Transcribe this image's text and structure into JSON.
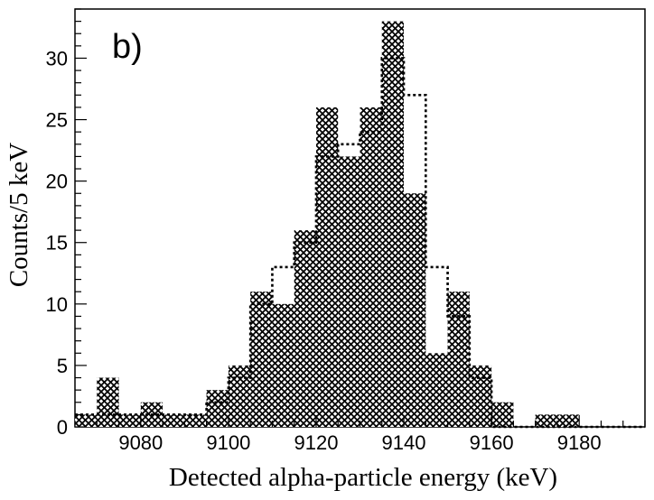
{
  "chart_data": {
    "type": "histogram",
    "panel_label": "b)",
    "xlabel": "Detected alpha-particle energy (keV)",
    "ylabel": "Counts/5 keV",
    "xlim": [
      9065,
      9195
    ],
    "ylim": [
      0,
      34
    ],
    "bin_width": 5,
    "x_ticks": [
      9080,
      9100,
      9120,
      9140,
      9160,
      9180
    ],
    "y_ticks": [
      0,
      5,
      10,
      15,
      20,
      25,
      30
    ],
    "bin_starts": [
      9065,
      9070,
      9075,
      9080,
      9085,
      9090,
      9095,
      9100,
      9105,
      9110,
      9115,
      9120,
      9125,
      9130,
      9135,
      9140,
      9145,
      9150,
      9155,
      9160,
      9165,
      9170,
      9175,
      9180,
      9185,
      9190
    ],
    "series": [
      {
        "style": "crosshatch-filled",
        "values": [
          1,
          4,
          1,
          2,
          1,
          1,
          3,
          5,
          11,
          10,
          16,
          26,
          22,
          26,
          33,
          19,
          6,
          11,
          5,
          2,
          0,
          1,
          1,
          0,
          0,
          0
        ]
      },
      {
        "style": "dotted-outline",
        "values": [
          1,
          1,
          1,
          1,
          1,
          1,
          2,
          4,
          10,
          13,
          15,
          22,
          23,
          24,
          30,
          27,
          13,
          9,
          4,
          0,
          0,
          0,
          0,
          0,
          0,
          0
        ]
      }
    ]
  }
}
